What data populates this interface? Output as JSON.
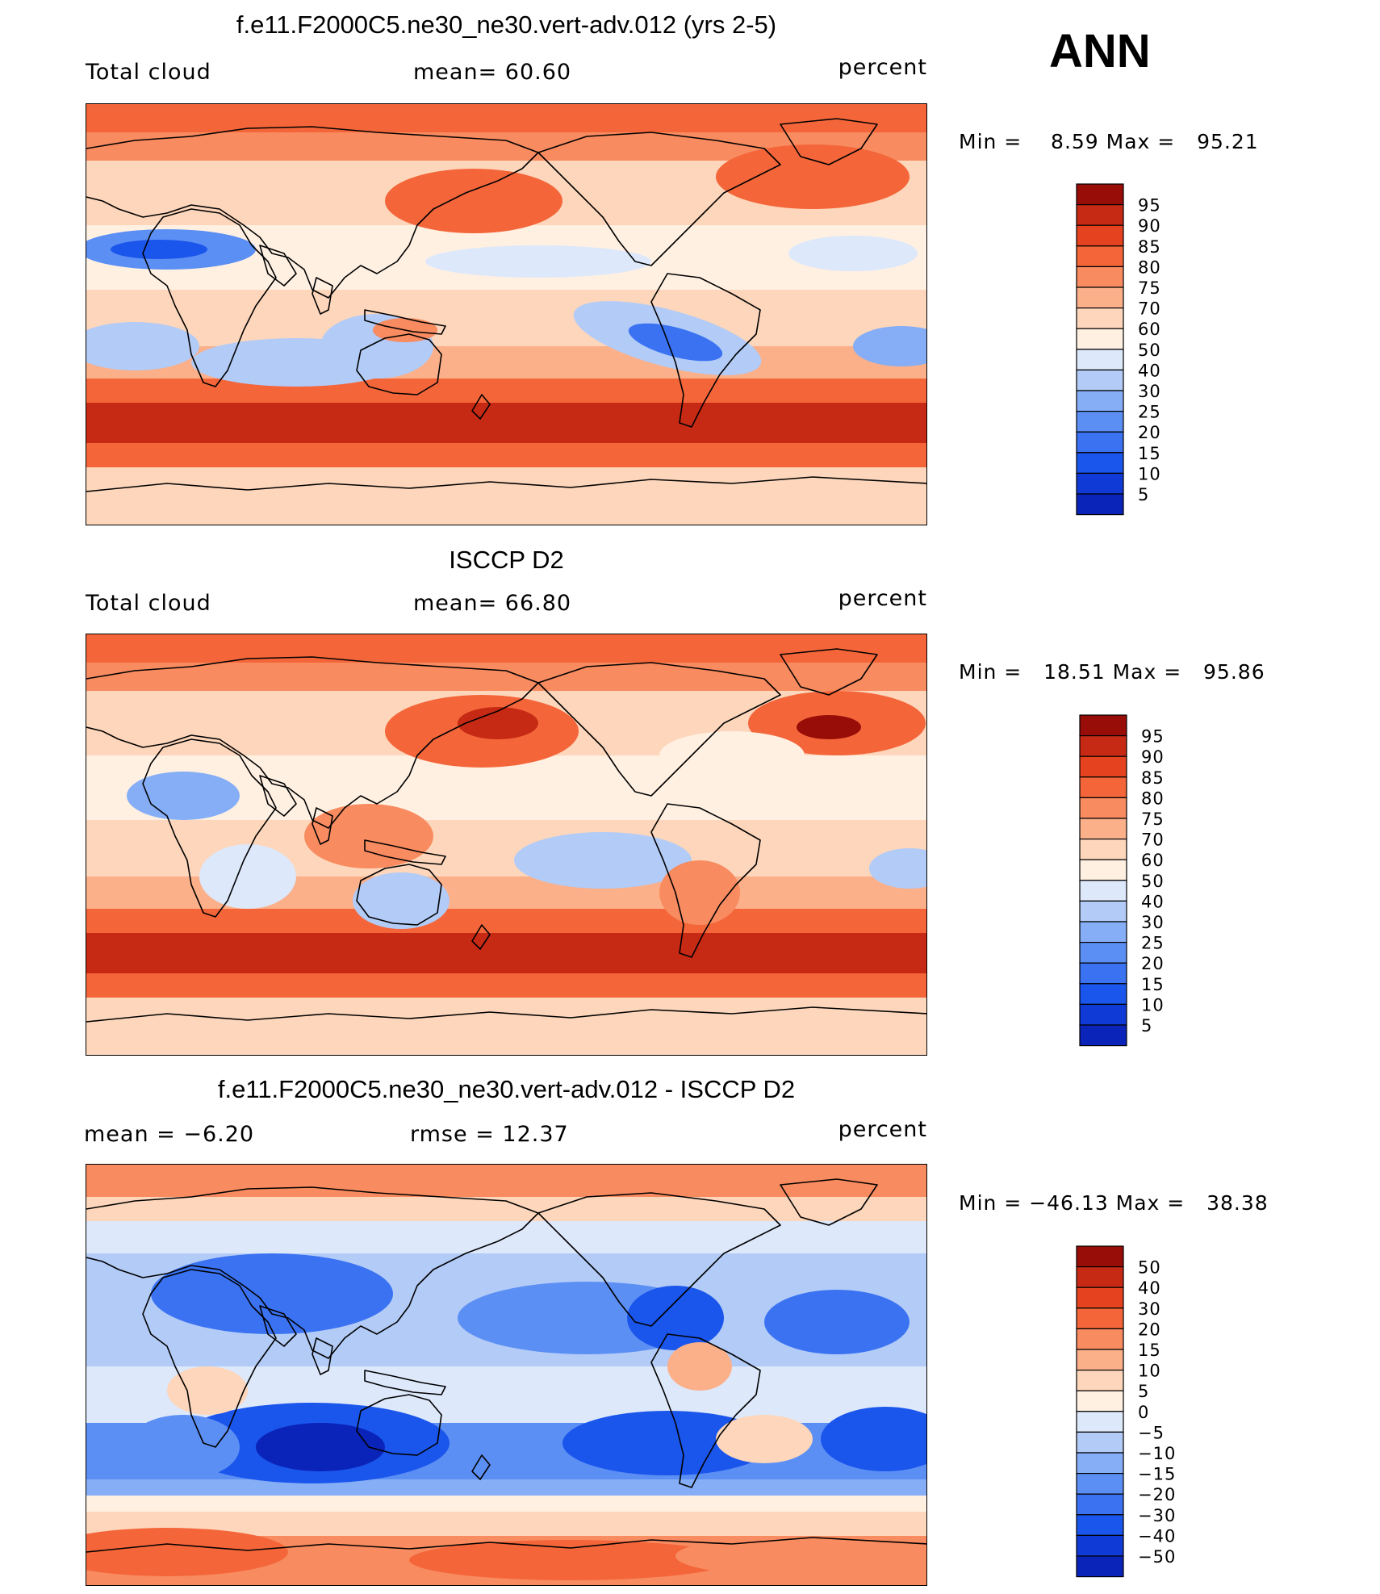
{
  "season": "ANN",
  "palette": [
    "#00008b",
    "#0a23b8",
    "#0f3ad6",
    "#1a55ec",
    "#3a72f2",
    "#5c8ff4",
    "#85aef6",
    "#b2cbf7",
    "#dde8fb",
    "#fff0e2",
    "#fdd6bb",
    "#fbb08a",
    "#f88b60",
    "#f4663a",
    "#e54320",
    "#c72a14",
    "#990d08"
  ],
  "panels": [
    {
      "title": "f.e11.F2000C5.ne30_ne30.vert-adv.012 (yrs 2-5)",
      "left": "Total cloud",
      "center": "mean=   60.60",
      "units": "percent",
      "minmax": "Min =    8.59 Max =   95.21",
      "colorbar": [
        "95",
        "90",
        "85",
        "80",
        "75",
        "70",
        "60",
        "50",
        "40",
        "30",
        "25",
        "20",
        "15",
        "10",
        "5"
      ]
    },
    {
      "title": "ISCCP D2",
      "left": "Total cloud",
      "center": "mean=   66.80",
      "units": "percent",
      "minmax": "Min =   18.51 Max =   95.86",
      "colorbar": [
        "95",
        "90",
        "85",
        "80",
        "75",
        "70",
        "60",
        "50",
        "40",
        "30",
        "25",
        "20",
        "15",
        "10",
        "5"
      ]
    },
    {
      "title": "f.e11.F2000C5.ne30_ne30.vert-adv.012 - ISCCP D2",
      "left": "mean =   −6.20",
      "center": "rmse =   12.37",
      "units": "percent",
      "minmax": "Min = −46.13 Max =   38.38",
      "colorbar": [
        "50",
        "40",
        "30",
        "20",
        "15",
        "10",
        "5",
        "0",
        "−5",
        "−10",
        "−15",
        "−20",
        "−30",
        "−40",
        "−50"
      ]
    }
  ],
  "chart_data": [
    {
      "type": "heatmap",
      "title": "f.e11.F2000C5.ne30_ne30.vert-adv.012 (yrs 2-5)",
      "variable": "Total cloud",
      "units": "percent",
      "mean": 60.6,
      "min": 8.59,
      "max": 95.21,
      "levels": [
        5,
        10,
        15,
        20,
        25,
        30,
        40,
        50,
        60,
        70,
        75,
        80,
        85,
        90,
        95
      ],
      "season": "ANN"
    },
    {
      "type": "heatmap",
      "title": "ISCCP D2",
      "variable": "Total cloud",
      "units": "percent",
      "mean": 66.8,
      "min": 18.51,
      "max": 95.86,
      "levels": [
        5,
        10,
        15,
        20,
        25,
        30,
        40,
        50,
        60,
        70,
        75,
        80,
        85,
        90,
        95
      ],
      "season": "ANN"
    },
    {
      "type": "heatmap",
      "title": "f.e11.F2000C5.ne30_ne30.vert-adv.012 - ISCCP D2",
      "units": "percent",
      "mean": -6.2,
      "rmse": 12.37,
      "min": -46.13,
      "max": 38.38,
      "levels": [
        -50,
        -40,
        -30,
        -20,
        -15,
        -10,
        -5,
        0,
        5,
        10,
        15,
        20,
        30,
        40,
        50
      ],
      "season": "ANN"
    }
  ]
}
